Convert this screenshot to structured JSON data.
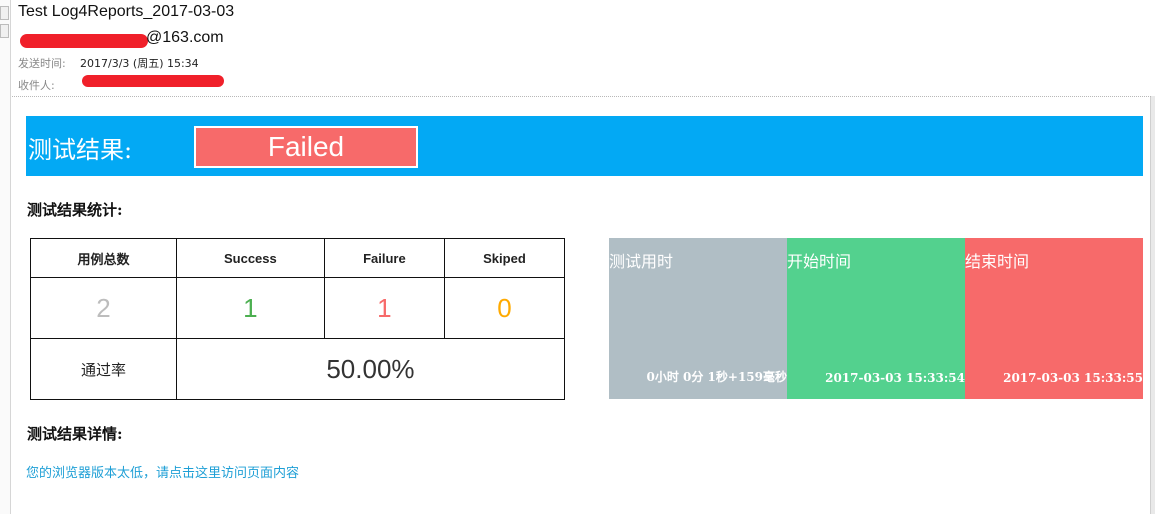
{
  "email": {
    "subject": "Test Log4Reports_2017-03-03",
    "sender_suffix": "@163.com",
    "sent_label": "发送时间:",
    "sent_value": "2017/3/3 (周五) 15:34",
    "to_label": "收件人:"
  },
  "banner": {
    "title": "测试结果:",
    "status": "Failed"
  },
  "stats": {
    "section_title": "测试结果统计:",
    "headers": [
      "用例总数",
      "Success",
      "Failure",
      "Skiped"
    ],
    "values": [
      "2",
      "1",
      "1",
      "0"
    ],
    "value_colors": [
      "#bdbdbd",
      "#4caf50",
      "#f76a6a",
      "#ffaa00"
    ],
    "pass_rate_label": "通过率",
    "pass_rate": "50.00%"
  },
  "times": [
    {
      "label": "测试用时",
      "value": "0小时 0分 1秒+159毫秒",
      "color": "#b0bec5"
    },
    {
      "label": "开始时间",
      "value": "2017-03-03 15:33:54",
      "color": "#53d18e"
    },
    {
      "label": "结束时间",
      "value": "2017-03-03 15:33:55",
      "color": "#f76a6a"
    }
  ],
  "details": {
    "section_title": "测试结果详情:",
    "link_text": "您的浏览器版本太低，请点击这里访问页面内容"
  }
}
